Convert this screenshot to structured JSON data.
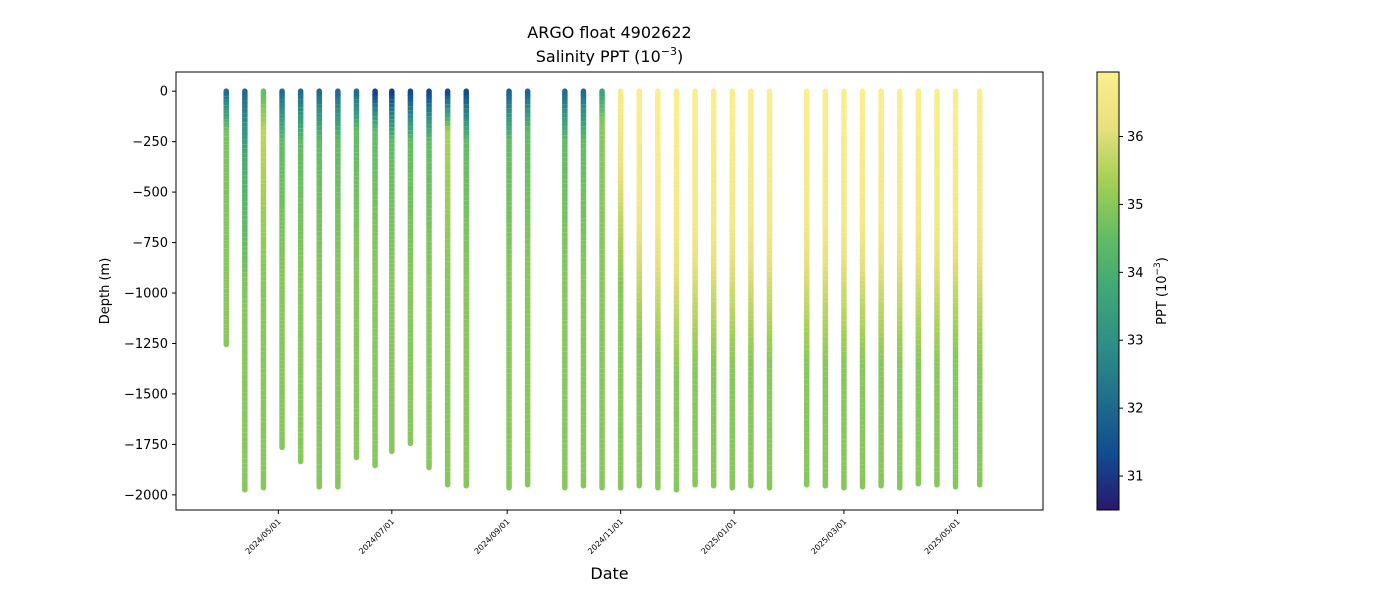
{
  "chart_data": {
    "type": "scatter",
    "title": "ARGO float 4902622",
    "subtitle_prefix": "Salinity PPT (10",
    "subtitle_exp": "−3",
    "subtitle_suffix": ")",
    "xlabel": "Date",
    "ylabel": "Depth (m)",
    "colorbar_label_prefix": "PPT (10",
    "colorbar_label_exp": "−3",
    "colorbar_label_suffix": ")",
    "colormap": "haline",
    "colormap_stops": [
      "#2a186c",
      "#0f4b90",
      "#1f6e8c",
      "#2e8e85",
      "#3fa777",
      "#62bd63",
      "#a4cf55",
      "#e8e07e",
      "#fbef8e"
    ],
    "salinity_range": [
      30.5,
      36.95
    ],
    "ylim": [
      -2075,
      95
    ],
    "xlim": [
      "2024-03-07",
      "2025-06-16"
    ],
    "y_ticks": [
      0,
      -250,
      -500,
      -750,
      -1000,
      -1250,
      -1500,
      -1750,
      -2000
    ],
    "y_tick_labels": [
      "0",
      "−250",
      "−500",
      "−750",
      "−1000",
      "−1250",
      "−1500",
      "−1750",
      "−2000"
    ],
    "x_ticks": [
      "2024-05-01",
      "2024-07-01",
      "2024-09-01",
      "2024-11-01",
      "2025-01-01",
      "2025-03-01",
      "2025-05-01"
    ],
    "x_tick_labels": [
      "2024/05/01",
      "2024/07/01",
      "2024/09/01",
      "2024/11/01",
      "2025/01/01",
      "2025/03/01",
      "2025/05/01"
    ],
    "colorbar_ticks": [
      31,
      32,
      33,
      34,
      35,
      36
    ],
    "colorbar_tick_labels": [
      "31",
      "32",
      "33",
      "34",
      "35",
      "36"
    ],
    "profiles": [
      {
        "date": "2024-04-03",
        "max_depth": -1255,
        "surface_salinity": 32.0,
        "deep_salinity": 35.0,
        "mix_depth": 200,
        "upper_salinity": 34.8
      },
      {
        "date": "2024-04-13",
        "max_depth": -1975,
        "surface_salinity": 32.0,
        "deep_salinity": 35.0,
        "mix_depth": 350,
        "upper_salinity": 34.0
      },
      {
        "date": "2024-04-23",
        "max_depth": -1965,
        "surface_salinity": 34.5,
        "deep_salinity": 35.0,
        "mix_depth": 200,
        "upper_salinity": 35.6
      },
      {
        "date": "2024-05-03",
        "max_depth": -1765,
        "surface_salinity": 32.0,
        "deep_salinity": 35.0,
        "mix_depth": 250,
        "upper_salinity": 34.5
      },
      {
        "date": "2024-05-13",
        "max_depth": -1835,
        "surface_salinity": 32.0,
        "deep_salinity": 35.0,
        "mix_depth": 250,
        "upper_salinity": 34.5
      },
      {
        "date": "2024-05-23",
        "max_depth": -1960,
        "surface_salinity": 32.0,
        "deep_salinity": 35.0,
        "mix_depth": 250,
        "upper_salinity": 34.5
      },
      {
        "date": "2024-06-02",
        "max_depth": -1960,
        "surface_salinity": 32.0,
        "deep_salinity": 35.0,
        "mix_depth": 250,
        "upper_salinity": 34.5
      },
      {
        "date": "2024-06-12",
        "max_depth": -1815,
        "surface_salinity": 32.0,
        "deep_salinity": 35.0,
        "mix_depth": 200,
        "upper_salinity": 34.5
      },
      {
        "date": "2024-06-22",
        "max_depth": -1855,
        "surface_salinity": 31.0,
        "deep_salinity": 35.0,
        "mix_depth": 200,
        "upper_salinity": 34.5
      },
      {
        "date": "2024-07-01",
        "max_depth": -1785,
        "surface_salinity": 31.0,
        "deep_salinity": 35.0,
        "mix_depth": 250,
        "upper_salinity": 34.5
      },
      {
        "date": "2024-07-11",
        "max_depth": -1745,
        "surface_salinity": 31.2,
        "deep_salinity": 35.0,
        "mix_depth": 250,
        "upper_salinity": 34.5
      },
      {
        "date": "2024-07-21",
        "max_depth": -1865,
        "surface_salinity": 31.2,
        "deep_salinity": 35.0,
        "mix_depth": 250,
        "upper_salinity": 34.5
      },
      {
        "date": "2024-07-31",
        "max_depth": -1950,
        "surface_salinity": 31.2,
        "deep_salinity": 35.0,
        "mix_depth": 200,
        "upper_salinity": 35.4
      },
      {
        "date": "2024-08-10",
        "max_depth": -1955,
        "surface_salinity": 31.2,
        "deep_salinity": 35.0,
        "mix_depth": 250,
        "upper_salinity": 34.5
      },
      {
        "date": "2024-09-02",
        "max_depth": -1965,
        "surface_salinity": 31.8,
        "deep_salinity": 35.0,
        "mix_depth": 250,
        "upper_salinity": 34.5
      },
      {
        "date": "2024-09-12",
        "max_depth": -1950,
        "surface_salinity": 31.8,
        "deep_salinity": 35.0,
        "mix_depth": 200,
        "upper_salinity": 34.5
      },
      {
        "date": "2024-10-02",
        "max_depth": -1965,
        "surface_salinity": 32.0,
        "deep_salinity": 35.0,
        "mix_depth": 250,
        "upper_salinity": 34.5
      },
      {
        "date": "2024-10-12",
        "max_depth": -1955,
        "surface_salinity": 32.0,
        "deep_salinity": 35.0,
        "mix_depth": 250,
        "upper_salinity": 34.5
      },
      {
        "date": "2024-10-22",
        "max_depth": -1965,
        "surface_salinity": 33.5,
        "deep_salinity": 35.0,
        "mix_depth": 150,
        "upper_salinity": 35.0
      },
      {
        "date": "2024-11-01",
        "max_depth": -1965,
        "surface_salinity": 36.8,
        "deep_salinity": 35.0,
        "mix_depth": 250,
        "upper_salinity": 36.5
      },
      {
        "date": "2024-11-11",
        "max_depth": -1955,
        "surface_salinity": 36.9,
        "deep_salinity": 35.0,
        "mix_depth": 550,
        "upper_salinity": 36.6
      },
      {
        "date": "2024-11-21",
        "max_depth": -1965,
        "surface_salinity": 36.9,
        "deep_salinity": 35.0,
        "mix_depth": 650,
        "upper_salinity": 36.6
      },
      {
        "date": "2024-12-01",
        "max_depth": -1975,
        "surface_salinity": 36.9,
        "deep_salinity": 35.0,
        "mix_depth": 700,
        "upper_salinity": 36.6
      },
      {
        "date": "2024-12-11",
        "max_depth": -1950,
        "surface_salinity": 36.9,
        "deep_salinity": 35.0,
        "mix_depth": 650,
        "upper_salinity": 36.6
      },
      {
        "date": "2024-12-21",
        "max_depth": -1955,
        "surface_salinity": 36.9,
        "deep_salinity": 35.0,
        "mix_depth": 650,
        "upper_salinity": 36.6
      },
      {
        "date": "2024-12-31",
        "max_depth": -1965,
        "surface_salinity": 36.9,
        "deep_salinity": 35.0,
        "mix_depth": 650,
        "upper_salinity": 36.6
      },
      {
        "date": "2025-01-10",
        "max_depth": -1955,
        "surface_salinity": 36.9,
        "deep_salinity": 35.0,
        "mix_depth": 650,
        "upper_salinity": 36.6
      },
      {
        "date": "2025-01-20",
        "max_depth": -1965,
        "surface_salinity": 36.9,
        "deep_salinity": 35.0,
        "mix_depth": 650,
        "upper_salinity": 36.6
      },
      {
        "date": "2025-02-09",
        "max_depth": -1950,
        "surface_salinity": 36.9,
        "deep_salinity": 35.0,
        "mix_depth": 650,
        "upper_salinity": 36.6
      },
      {
        "date": "2025-02-19",
        "max_depth": -1955,
        "surface_salinity": 36.9,
        "deep_salinity": 35.0,
        "mix_depth": 650,
        "upper_salinity": 36.6
      },
      {
        "date": "2025-03-01",
        "max_depth": -1965,
        "surface_salinity": 36.9,
        "deep_salinity": 35.0,
        "mix_depth": 650,
        "upper_salinity": 36.6
      },
      {
        "date": "2025-03-11",
        "max_depth": -1960,
        "surface_salinity": 36.9,
        "deep_salinity": 35.0,
        "mix_depth": 650,
        "upper_salinity": 36.6
      },
      {
        "date": "2025-03-21",
        "max_depth": -1955,
        "surface_salinity": 36.9,
        "deep_salinity": 35.0,
        "mix_depth": 650,
        "upper_salinity": 36.6
      },
      {
        "date": "2025-03-31",
        "max_depth": -1965,
        "surface_salinity": 36.9,
        "deep_salinity": 35.0,
        "mix_depth": 650,
        "upper_salinity": 36.6
      },
      {
        "date": "2025-04-10",
        "max_depth": -1945,
        "surface_salinity": 36.9,
        "deep_salinity": 35.0,
        "mix_depth": 650,
        "upper_salinity": 36.6
      },
      {
        "date": "2025-04-20",
        "max_depth": -1950,
        "surface_salinity": 36.9,
        "deep_salinity": 35.0,
        "mix_depth": 650,
        "upper_salinity": 36.6
      },
      {
        "date": "2025-04-30",
        "max_depth": -1960,
        "surface_salinity": 36.9,
        "deep_salinity": 35.0,
        "mix_depth": 600,
        "upper_salinity": 36.6
      },
      {
        "date": "2025-05-13",
        "max_depth": -1950,
        "surface_salinity": 36.9,
        "deep_salinity": 35.0,
        "mix_depth": 650,
        "upper_salinity": 36.6
      }
    ]
  }
}
